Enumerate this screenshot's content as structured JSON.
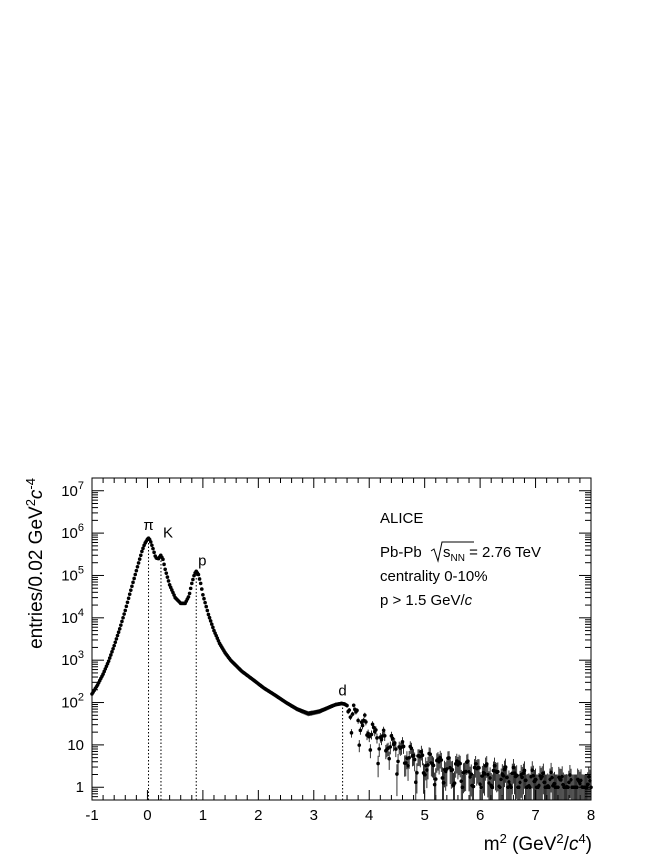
{
  "chart_data": {
    "type": "scatter",
    "xlabel": {
      "main": "m",
      "sup1": "2",
      "open": " (GeV",
      "sup2": "2",
      "slash": "/",
      "c": "c",
      "sup3": "4",
      "close": ")"
    },
    "ylabel": {
      "main": "entries/0.02 GeV",
      "sup1": "2",
      "c": "c",
      "sup2": "-4"
    },
    "xlim": [
      -1,
      8
    ],
    "ylim": [
      0.5,
      20000000
    ],
    "yscale": "log",
    "grid": false,
    "x_ticks": [
      "-1",
      "0",
      "1",
      "2",
      "3",
      "4",
      "5",
      "6",
      "7",
      "8"
    ],
    "y_ticks": [
      {
        "base": "1",
        "exp": ""
      },
      {
        "base": "10",
        "exp": ""
      },
      {
        "base": "10",
        "exp": "2"
      },
      {
        "base": "10",
        "exp": "3"
      },
      {
        "base": "10",
        "exp": "4"
      },
      {
        "base": "10",
        "exp": "5"
      },
      {
        "base": "10",
        "exp": "6"
      },
      {
        "base": "10",
        "exp": "7"
      }
    ],
    "legend_text": {
      "experiment": "ALICE",
      "system": "Pb-Pb",
      "sqrt_s": "s",
      "sqrt_sub": "NN",
      "energy": " = 2.76 TeV",
      "centrality": "centrality 0-10%",
      "cut": "p > 1.5 GeV/",
      "cut_c": "c"
    },
    "peaks": [
      {
        "label": "π",
        "m2": 0.0195
      },
      {
        "label": "K",
        "m2": 0.244
      },
      {
        "label": "p",
        "m2": 0.88
      },
      {
        "label": "d",
        "m2": 3.52
      }
    ],
    "points": [
      [
        -1.0,
        160
      ],
      [
        -0.9,
        260
      ],
      [
        -0.8,
        470
      ],
      [
        -0.7,
        950
      ],
      [
        -0.6,
        2200
      ],
      [
        -0.5,
        5500
      ],
      [
        -0.4,
        15000
      ],
      [
        -0.3,
        45000
      ],
      [
        -0.2,
        130000
      ],
      [
        -0.1,
        370000
      ],
      [
        -0.05,
        560000
      ],
      [
        0.0,
        720000
      ],
      [
        0.02,
        760000
      ],
      [
        0.05,
        680000
      ],
      [
        0.1,
        430000
      ],
      [
        0.15,
        260000
      ],
      [
        0.2,
        250000
      ],
      [
        0.24,
        300000
      ],
      [
        0.28,
        240000
      ],
      [
        0.32,
        140000
      ],
      [
        0.4,
        60000
      ],
      [
        0.5,
        30000
      ],
      [
        0.6,
        22000
      ],
      [
        0.68,
        22000
      ],
      [
        0.75,
        33000
      ],
      [
        0.8,
        65000
      ],
      [
        0.85,
        110000
      ],
      [
        0.88,
        125000
      ],
      [
        0.92,
        105000
      ],
      [
        0.96,
        65000
      ],
      [
        1.0,
        35000
      ],
      [
        1.1,
        12000
      ],
      [
        1.2,
        5000
      ],
      [
        1.3,
        2500
      ],
      [
        1.4,
        1500
      ],
      [
        1.5,
        1000
      ],
      [
        1.7,
        550
      ],
      [
        1.9,
        350
      ],
      [
        2.1,
        220
      ],
      [
        2.3,
        150
      ],
      [
        2.5,
        100
      ],
      [
        2.7,
        70
      ],
      [
        2.8,
        62
      ],
      [
        2.9,
        55
      ],
      [
        3.0,
        58
      ],
      [
        3.1,
        62
      ],
      [
        3.2,
        70
      ],
      [
        3.3,
        80
      ],
      [
        3.4,
        90
      ],
      [
        3.5,
        95
      ],
      [
        3.55,
        93
      ],
      [
        3.6,
        85
      ],
      [
        3.7,
        60
      ],
      [
        3.8,
        42
      ],
      [
        3.9,
        30
      ],
      [
        4.0,
        22
      ],
      [
        4.2,
        14
      ],
      [
        4.4,
        10
      ],
      [
        4.6,
        7
      ],
      [
        4.8,
        5
      ],
      [
        5.0,
        4
      ],
      [
        5.2,
        3.5
      ],
      [
        5.4,
        3
      ],
      [
        5.6,
        2.8
      ],
      [
        5.8,
        2.4
      ],
      [
        6.0,
        2.2
      ],
      [
        6.2,
        2
      ],
      [
        6.4,
        1.8
      ],
      [
        6.6,
        1.7
      ],
      [
        6.8,
        1.5
      ],
      [
        7.0,
        1.4
      ],
      [
        7.2,
        1.3
      ],
      [
        7.4,
        1.2
      ],
      [
        7.6,
        1.1
      ],
      [
        7.8,
        1.0
      ],
      [
        8.0,
        1.0
      ]
    ]
  }
}
